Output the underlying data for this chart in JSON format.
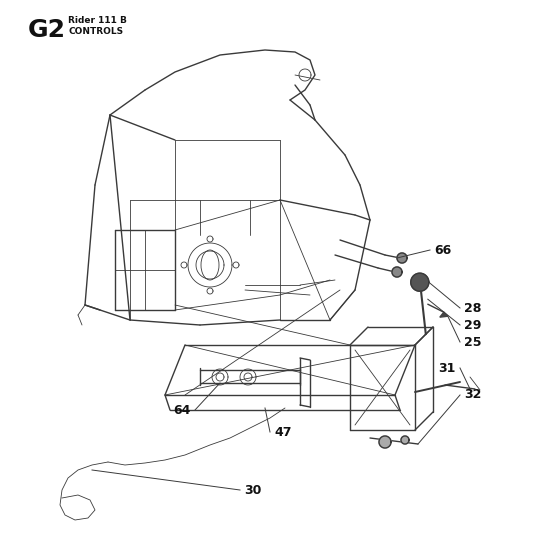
{
  "title_large": "G2",
  "title_small_line1": "Rider 111 B",
  "title_small_line2": "CONTROLS",
  "bg_color": "#ffffff",
  "line_color": "#3a3a3a",
  "label_color": "#111111",
  "label_fontsize": 9,
  "lw_main": 1.0,
  "lw_thin": 0.6,
  "lw_thick": 1.4
}
